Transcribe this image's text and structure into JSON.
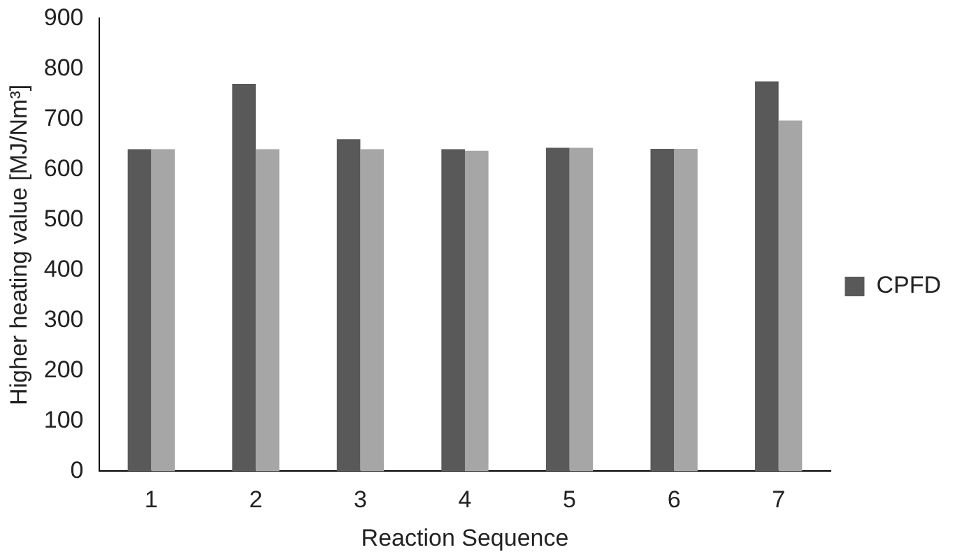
{
  "chart_data": {
    "type": "bar",
    "xlabel": "Reaction Sequence",
    "ylabel": "Higher heating value [MJ/Nm³]",
    "categories": [
      "1",
      "2",
      "3",
      "4",
      "5",
      "6",
      "7"
    ],
    "series": [
      {
        "name": "CPFD",
        "color": "#595959",
        "values": [
          640,
          770,
          660,
          640,
          643,
          641,
          775
        ]
      },
      {
        "color": "#a6a6a6",
        "values": [
          640,
          640,
          640,
          637,
          643,
          641,
          697
        ]
      }
    ],
    "ylim": [
      0,
      900
    ],
    "yticks": [
      0,
      100,
      200,
      300,
      400,
      500,
      600,
      700,
      800,
      900
    ],
    "grid": false,
    "legend": "right"
  }
}
